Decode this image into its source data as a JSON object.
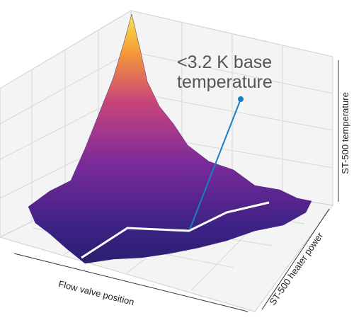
{
  "chart_data": {
    "type": "surface",
    "annotation": [
      "<3.2 K base",
      "temperature"
    ],
    "x_label": "Flow valve position",
    "y_label": "ST-500 heater power",
    "z_label": "ST-500 temperature"
  }
}
